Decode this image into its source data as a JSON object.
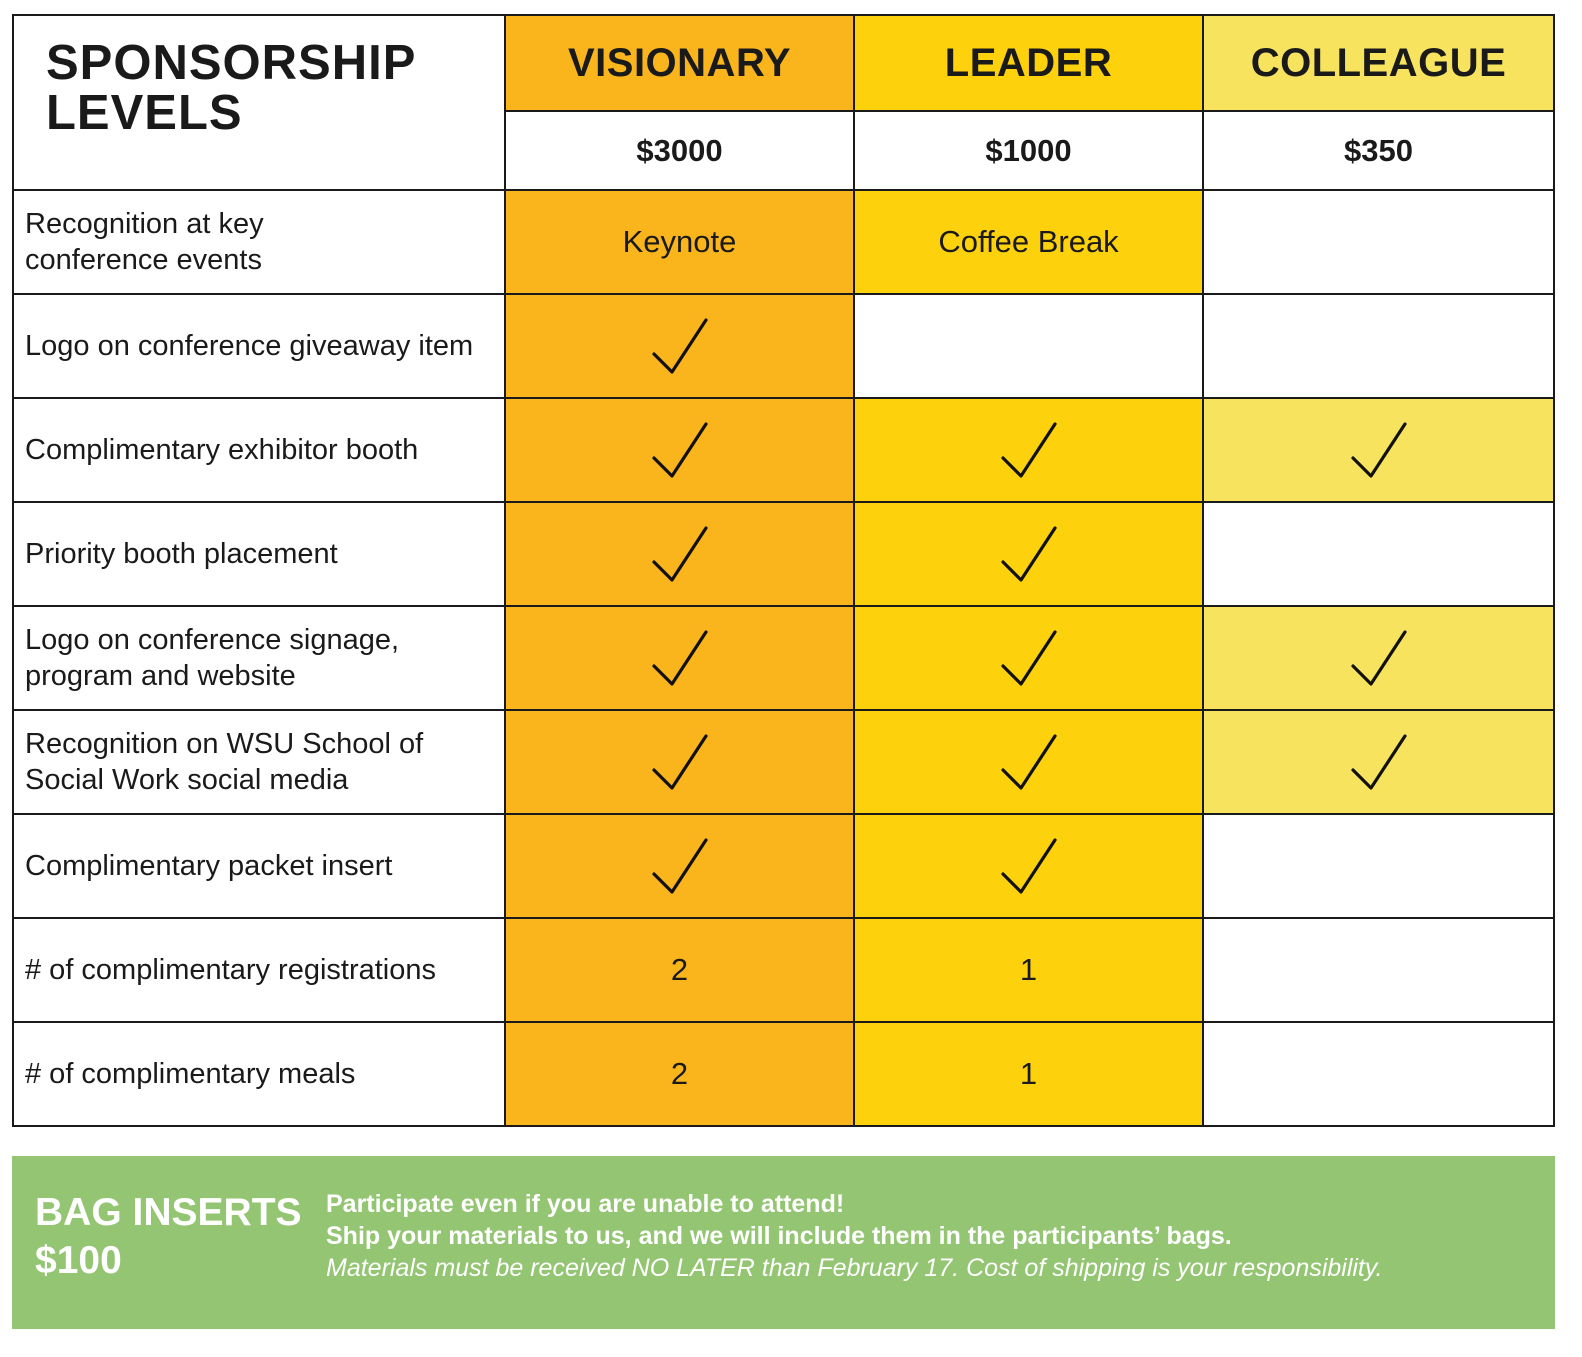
{
  "title": "SPONSORSHIP\nLEVELS",
  "tiers": [
    {
      "name": "VISIONARY",
      "price": "$3000",
      "color": "#FAB51D"
    },
    {
      "name": "LEADER",
      "price": "$1000",
      "color": "#FDD20C"
    },
    {
      "name": "COLLEAGUE",
      "price": "$350",
      "color": "#F8E35F"
    }
  ],
  "benefits": [
    {
      "label": "Recognition at key\nconference events",
      "cells": [
        {
          "type": "text",
          "value": "Keynote"
        },
        {
          "type": "text",
          "value": "Coffee Break"
        },
        {
          "type": "empty"
        }
      ]
    },
    {
      "label": "Logo on conference giveaway item",
      "cells": [
        {
          "type": "check"
        },
        {
          "type": "empty"
        },
        {
          "type": "empty"
        }
      ]
    },
    {
      "label": "Complimentary exhibitor booth",
      "cells": [
        {
          "type": "check"
        },
        {
          "type": "check"
        },
        {
          "type": "check"
        }
      ]
    },
    {
      "label": "Priority booth placement",
      "cells": [
        {
          "type": "check"
        },
        {
          "type": "check"
        },
        {
          "type": "empty"
        }
      ]
    },
    {
      "label": "Logo on conference signage,\nprogram and website",
      "cells": [
        {
          "type": "check"
        },
        {
          "type": "check"
        },
        {
          "type": "check"
        }
      ]
    },
    {
      "label": "Recognition on WSU School of\nSocial Work social media",
      "cells": [
        {
          "type": "check"
        },
        {
          "type": "check"
        },
        {
          "type": "check"
        }
      ]
    },
    {
      "label": "Complimentary packet insert",
      "cells": [
        {
          "type": "check"
        },
        {
          "type": "check"
        },
        {
          "type": "empty"
        }
      ]
    },
    {
      "label": "# of complimentary registrations",
      "cells": [
        {
          "type": "text",
          "value": "2"
        },
        {
          "type": "text",
          "value": "1"
        },
        {
          "type": "empty"
        }
      ]
    },
    {
      "label": "# of complimentary meals",
      "cells": [
        {
          "type": "text",
          "value": "2"
        },
        {
          "type": "text",
          "value": "1"
        },
        {
          "type": "empty"
        }
      ]
    }
  ],
  "bag_inserts": {
    "title": "BAG INSERTS\n$100",
    "line1": "Participate even if you are unable to attend!",
    "line2": "Ship your materials to us, and we will include them in the participants’ bags.",
    "line3": "Materials must be received NO LATER than February 17. Cost of shipping is your responsibility.",
    "color": "#93C572"
  },
  "icons": {
    "check": "check-icon"
  }
}
